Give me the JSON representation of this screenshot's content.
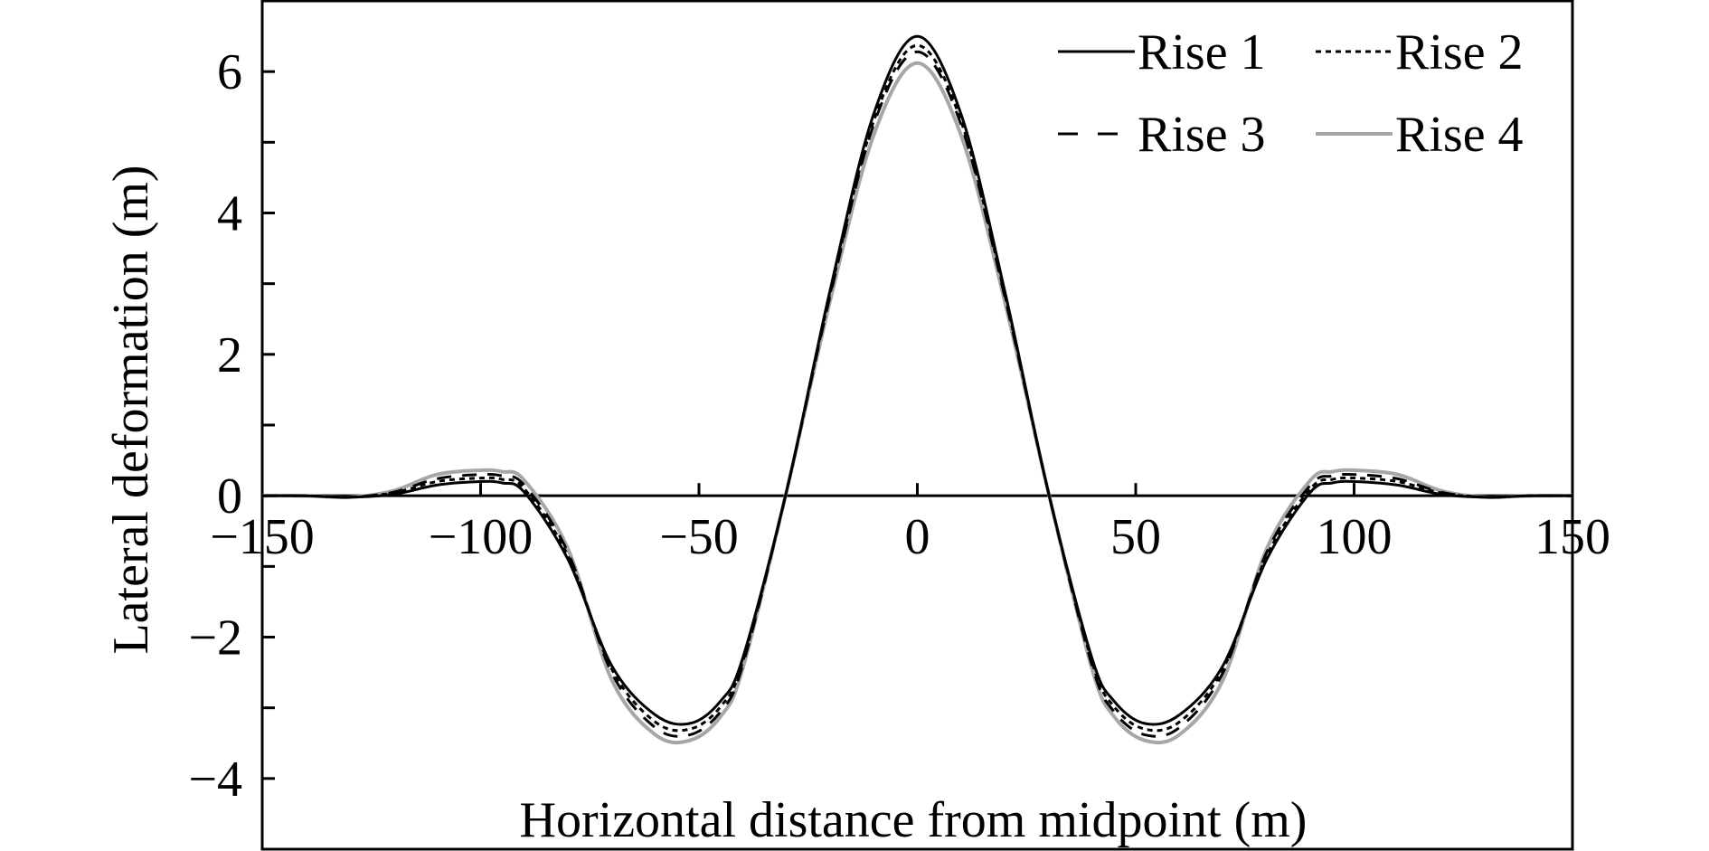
{
  "chart_data": {
    "type": "line",
    "xlabel": "Horizontal distance from midpoint (m)",
    "ylabel": "Lateral deformation (m)",
    "xlim": [
      -150,
      150
    ],
    "ylim": [
      -5,
      7
    ],
    "xticks": [
      -150,
      -100,
      -50,
      0,
      50,
      100,
      150
    ],
    "xtick_labels": [
      "−150",
      "−100",
      "−50",
      "0",
      "50",
      "100",
      "150"
    ],
    "yticks": [
      -4,
      -2,
      0,
      2,
      4,
      6
    ],
    "ytick_labels": [
      "−4",
      "−2",
      "0",
      "2",
      "4",
      "6"
    ],
    "grid": false,
    "legend_position": "top-right",
    "x": [
      -150,
      -140,
      -130,
      -120,
      -110,
      -100,
      -95,
      -90,
      -80,
      -70,
      -60,
      -52,
      -45,
      -40,
      -30,
      -20,
      -10,
      0,
      10,
      20,
      30,
      40,
      45,
      52,
      60,
      70,
      80,
      90,
      95,
      100,
      110,
      120,
      130,
      140,
      150
    ],
    "series": [
      {
        "name": "Rise 1",
        "color": "#000000",
        "style": "solid",
        "values": [
          0,
          0,
          -0.02,
          0.02,
          0.15,
          0.2,
          0.18,
          0.05,
          -0.9,
          -2.4,
          -3.1,
          -3.22,
          -2.9,
          -2.3,
          0.05,
          2.9,
          5.4,
          6.5,
          5.4,
          2.9,
          0.05,
          -2.3,
          -2.9,
          -3.22,
          -3.1,
          -2.4,
          -0.9,
          0.05,
          0.18,
          0.2,
          0.15,
          0.02,
          -0.02,
          0,
          0
        ]
      },
      {
        "name": "Rise 2",
        "color": "#000000",
        "style": "dotted",
        "values": [
          0,
          0,
          -0.02,
          0.04,
          0.2,
          0.25,
          0.23,
          0.1,
          -0.85,
          -2.45,
          -3.2,
          -3.3,
          -2.98,
          -2.35,
          0.05,
          2.85,
          5.3,
          6.37,
          5.3,
          2.85,
          0.05,
          -2.35,
          -2.98,
          -3.3,
          -3.2,
          -2.45,
          -0.85,
          0.1,
          0.23,
          0.25,
          0.2,
          0.04,
          -0.02,
          0,
          0
        ]
      },
      {
        "name": "Rise 3",
        "color": "#000000",
        "style": "dashed",
        "values": [
          0,
          0,
          -0.02,
          0.05,
          0.24,
          0.3,
          0.28,
          0.15,
          -0.8,
          -2.5,
          -3.28,
          -3.38,
          -3.05,
          -2.4,
          0.05,
          2.82,
          5.25,
          6.28,
          5.25,
          2.82,
          0.05,
          -2.4,
          -3.05,
          -3.38,
          -3.28,
          -2.5,
          -0.8,
          0.15,
          0.28,
          0.3,
          0.24,
          0.05,
          -0.02,
          0,
          0
        ]
      },
      {
        "name": "Rise 4",
        "color": "#a6a6a6",
        "style": "solid",
        "values": [
          0,
          0,
          -0.02,
          0.07,
          0.3,
          0.36,
          0.34,
          0.22,
          -0.75,
          -2.6,
          -3.38,
          -3.46,
          -3.12,
          -2.45,
          0.05,
          2.75,
          5.1,
          6.12,
          5.1,
          2.75,
          0.05,
          -2.45,
          -3.12,
          -3.46,
          -3.38,
          -2.6,
          -0.75,
          0.22,
          0.34,
          0.36,
          0.3,
          0.07,
          -0.02,
          0,
          0
        ]
      }
    ]
  }
}
